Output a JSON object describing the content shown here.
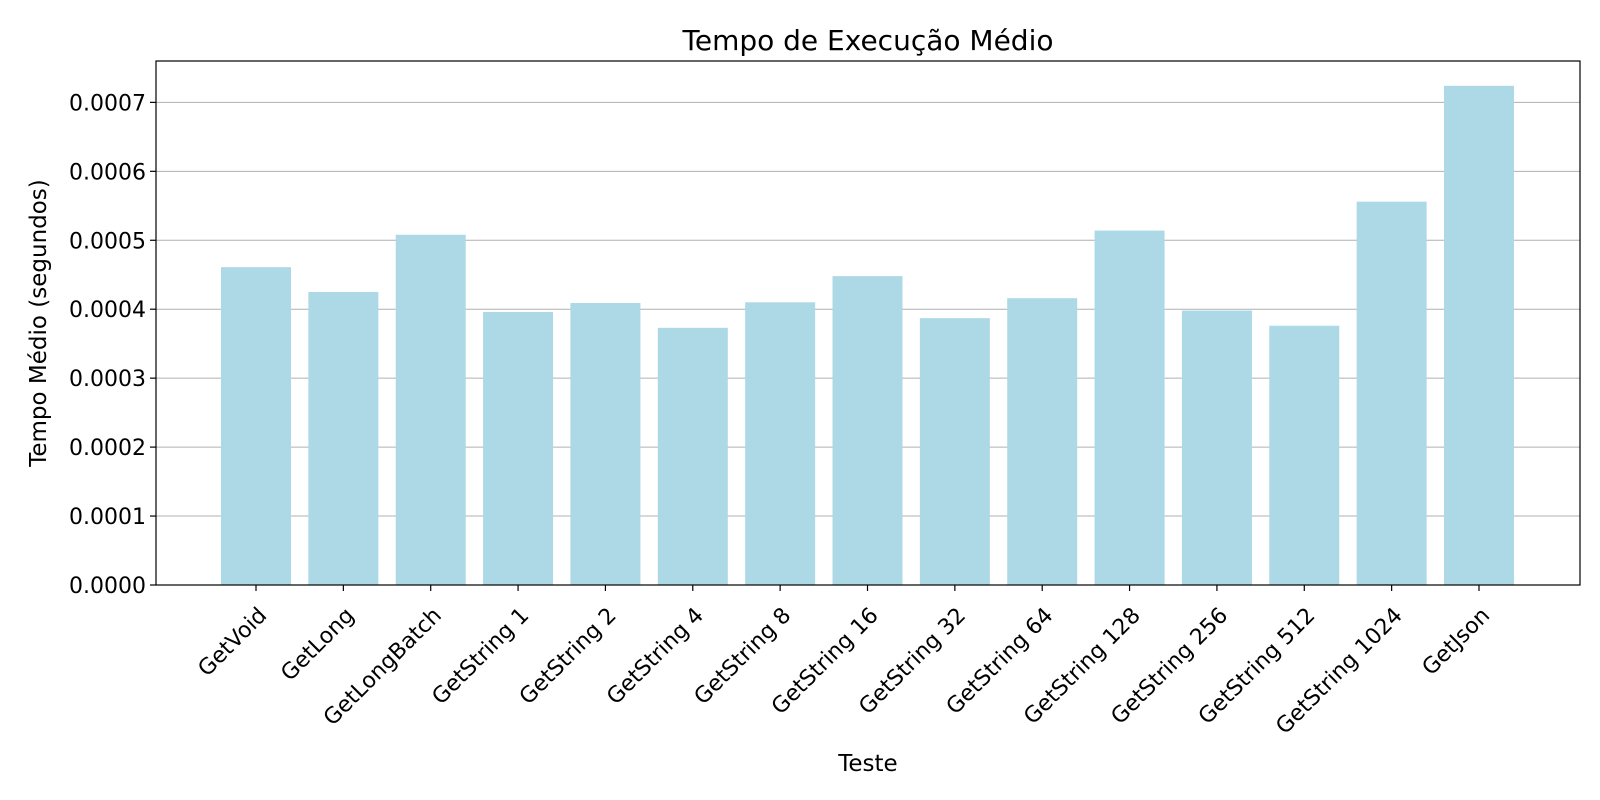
{
  "chart_data": {
    "type": "bar",
    "title": "Tempo de Execução Médio",
    "xlabel": "Teste",
    "ylabel": "Tempo Médio (segundos)",
    "categories": [
      "GetVoid",
      "GetLong",
      "GetLongBatch",
      "GetString 1",
      "GetString 2",
      "GetString 4",
      "GetString 8",
      "GetString 16",
      "GetString 32",
      "GetString 64",
      "GetString 128",
      "GetString 256",
      "GetString 512",
      "GetString 1024",
      "GetJson"
    ],
    "values": [
      0.000461,
      0.000425,
      0.000508,
      0.000396,
      0.000409,
      0.000373,
      0.00041,
      0.000448,
      0.000387,
      0.000416,
      0.000514,
      0.000398,
      0.000376,
      0.000556,
      0.000724
    ],
    "yticks": [
      "0.0000",
      "0.0001",
      "0.0002",
      "0.0003",
      "0.0004",
      "0.0005",
      "0.0006",
      "0.0007"
    ],
    "ylim": [
      0,
      0.00076
    ],
    "grid": "y",
    "bar_color": "#add8e6"
  }
}
